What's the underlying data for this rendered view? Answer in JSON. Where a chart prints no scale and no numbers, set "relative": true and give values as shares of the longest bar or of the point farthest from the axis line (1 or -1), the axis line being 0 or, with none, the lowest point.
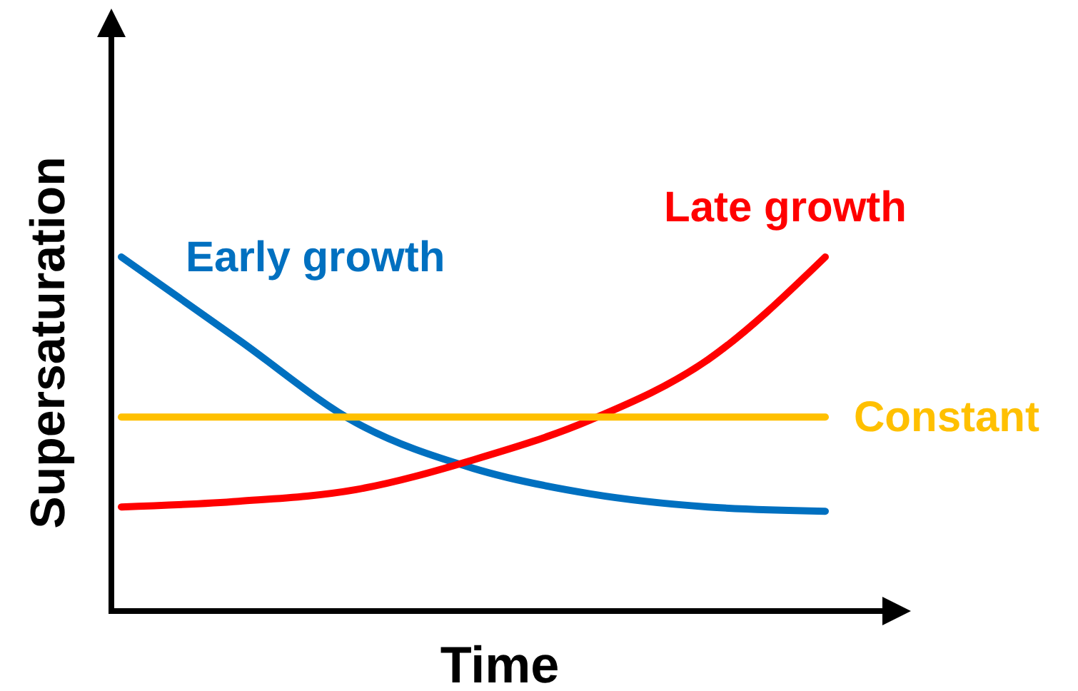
{
  "chart_data": {
    "type": "line",
    "relative": true,
    "xlabel": "Time",
    "ylabel": "Supersaturation",
    "categories": [
      null,
      null,
      null,
      null,
      null,
      null,
      null
    ],
    "marker": "none",
    "line_style": "solid",
    "series": [
      {
        "name": "Early growth",
        "color": "#0070c0",
        "values": [
          1,
          0.766,
          0.532,
          0.403,
          0.331,
          0.294,
          0.282
        ]
      },
      {
        "name": "Late growth",
        "color": "#ff0000",
        "values": [
          0.294,
          0.31,
          0.343,
          0.427,
          0.54,
          0.71,
          1
        ]
      },
      {
        "name": "Constant",
        "color": "#ffc000",
        "values": [
          0.548,
          0.548,
          0.548,
          0.548,
          0.548,
          0.548,
          0.548
        ]
      }
    ]
  }
}
